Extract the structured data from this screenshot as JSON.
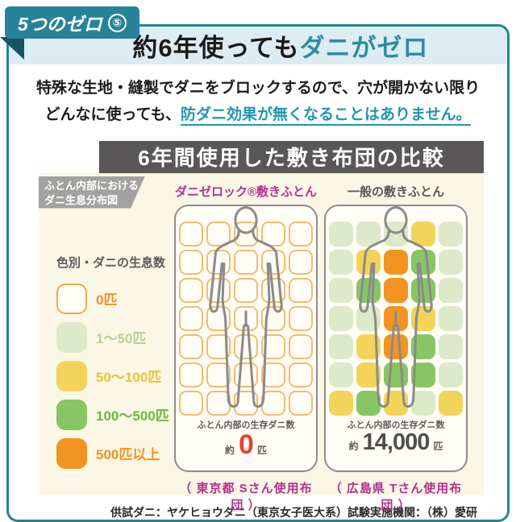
{
  "badge": {
    "label": "5つのゼロ",
    "number": "⑤"
  },
  "title": {
    "black_part": "約6年使っても",
    "teal_part": "ダニがゼロ"
  },
  "intro": {
    "line1": "特殊な生地・縫製でダニをブロックするので、穴が開かない限り",
    "line2_prefix": "どんなに使っても、",
    "line2_highlight": "防ダニ効果が無くなることはありません。"
  },
  "comparison": {
    "banner": "6年間使用した敷き布団の比較",
    "corner_label_line1": "ふとん内部における",
    "corner_label_line2": "ダニ生息分布図",
    "legend": {
      "title": "色別・ダニの生息数",
      "items": [
        {
          "label": "0匹",
          "color": "#fffdf6",
          "border": "#f3a84f",
          "text_color": "#f0912a"
        },
        {
          "label": "1〜50匹",
          "color": "#dde9c8",
          "text_color": "#b9d08e"
        },
        {
          "label": "50〜100匹",
          "color": "#f3d35a",
          "text_color": "#ecc32e"
        },
        {
          "label": "100〜500匹",
          "color": "#87c663",
          "text_color": "#6db93c"
        },
        {
          "label": "500匹以上",
          "color": "#f29422",
          "text_color": "#f0931f"
        }
      ]
    },
    "cell_colors": {
      "W": {
        "fill": "#fffdf6",
        "border": "#f5ba6e"
      },
      "LG": {
        "fill": "#dde9c8"
      },
      "Y": {
        "fill": "#f3d35a"
      },
      "G": {
        "fill": "#87c663"
      },
      "O": {
        "fill": "#f29422"
      }
    },
    "futons": [
      {
        "name": "ダニゼロック®敷きふとん",
        "name_color": "#b5308f",
        "count_label": "ふとん内部の生存ダニ数",
        "count_prefix": "約",
        "count_value": "0",
        "count_value_color": "#e8432b",
        "count_value_size": "34px",
        "count_unit": "匹",
        "caption": "（ 東京都 Sさん使用布団 ）",
        "grid": [
          [
            "W",
            "W",
            "W",
            "W",
            "W"
          ],
          [
            "W",
            "W",
            "W",
            "W",
            "W"
          ],
          [
            "W",
            "W",
            "W",
            "W",
            "W"
          ],
          [
            "W",
            "W",
            "W",
            "W",
            "W"
          ],
          [
            "W",
            "W",
            "W",
            "W",
            "W"
          ],
          [
            "W",
            "W",
            "W",
            "W",
            "W"
          ],
          [
            "W",
            "W",
            "W",
            "W",
            "W"
          ]
        ]
      },
      {
        "name": "一般の敷きふとん",
        "name_color": "#595757",
        "count_label": "ふとん内部の生存ダニ数",
        "count_prefix": "約",
        "count_value": "14,000",
        "count_value_color": "#4f4e4d",
        "count_value_size": "29px",
        "count_unit": "匹",
        "caption": "（ 広島県 Tさん使用布団 ）",
        "grid": [
          [
            "LG",
            "LG",
            "LG",
            "Y",
            "LG"
          ],
          [
            "LG",
            "Y",
            "O",
            "G",
            "LG"
          ],
          [
            "LG",
            "G",
            "O",
            "G",
            "LG"
          ],
          [
            "LG",
            "LG",
            "O",
            "Y",
            "LG"
          ],
          [
            "LG",
            "Y",
            "O",
            "G",
            "LG"
          ],
          [
            "LG",
            "Y",
            "G",
            "G",
            "LG"
          ],
          [
            "Y",
            "G",
            "Y",
            "LG",
            "Y"
          ]
        ]
      }
    ]
  },
  "footer": {
    "note": "供試ダニ：ヤケヒョウダニ（東京女子医大系）試験実施機関：（株）愛研"
  }
}
